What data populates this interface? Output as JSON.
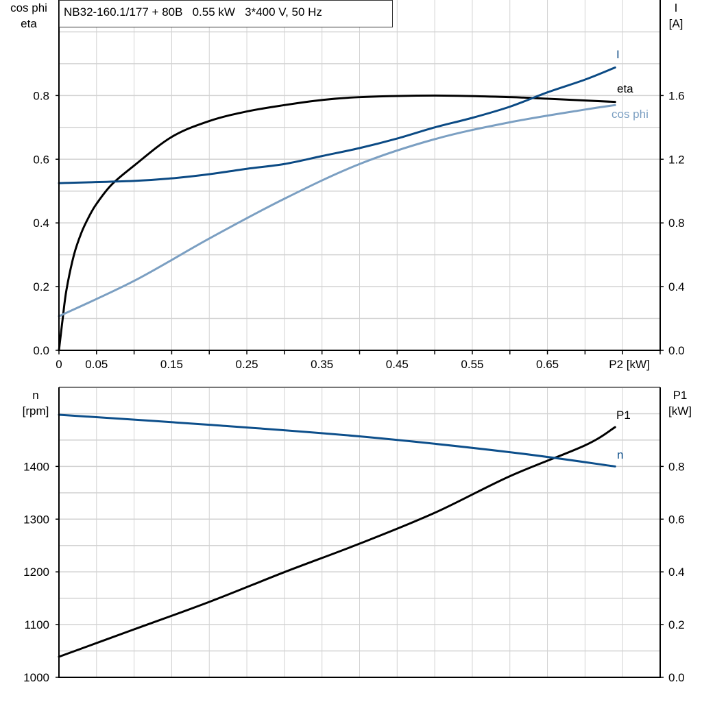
{
  "chart_data": [
    {
      "type": "line",
      "title": "NB32-160.1/177 + 80B   0.55 kW   3*400 V, 50 Hz",
      "xlabel": "P2 [kW]",
      "xlim": [
        0,
        0.8
      ],
      "x_tick_labels": [
        "0",
        "0.05",
        "0.15",
        "0.25",
        "0.35",
        "0.45",
        "0.55",
        "0.65"
      ],
      "x_tick_values": [
        0,
        0.05,
        0.15,
        0.25,
        0.35,
        0.45,
        0.55,
        0.65
      ],
      "ylabel_left": [
        "cos phi",
        "eta"
      ],
      "ylim_left": [
        0,
        1.1
      ],
      "y_ticks_left": [
        "0.0",
        "0.2",
        "0.4",
        "0.6",
        "0.8"
      ],
      "ylabel_right": [
        "I",
        "[A]"
      ],
      "ylim_right": [
        0,
        2.2
      ],
      "y_ticks_right": [
        "0.0",
        "0.4",
        "0.8",
        "1.2",
        "1.6"
      ],
      "grid": true,
      "series": [
        {
          "name": "eta",
          "axis": "left",
          "color": "#000000",
          "x": [
            0,
            0.005,
            0.01,
            0.02,
            0.03,
            0.04,
            0.05,
            0.07,
            0.1,
            0.15,
            0.2,
            0.25,
            0.3,
            0.35,
            0.4,
            0.5,
            0.6,
            0.65,
            0.74
          ],
          "y": [
            0,
            0.1,
            0.19,
            0.3,
            0.37,
            0.42,
            0.46,
            0.52,
            0.58,
            0.67,
            0.72,
            0.75,
            0.77,
            0.786,
            0.795,
            0.8,
            0.795,
            0.79,
            0.78
          ]
        },
        {
          "name": "I",
          "axis": "right",
          "color": "#0b4a84",
          "x": [
            0,
            0.1,
            0.15,
            0.2,
            0.25,
            0.3,
            0.35,
            0.4,
            0.45,
            0.5,
            0.55,
            0.6,
            0.65,
            0.7,
            0.74
          ],
          "y": [
            1.05,
            1.064,
            1.08,
            1.106,
            1.14,
            1.17,
            1.22,
            1.27,
            1.33,
            1.4,
            1.46,
            1.53,
            1.62,
            1.7,
            1.776
          ]
        },
        {
          "name": "cos phi",
          "axis": "left",
          "color": "#7b9fc2",
          "x": [
            0,
            0.1,
            0.2,
            0.3,
            0.4,
            0.5,
            0.6,
            0.7,
            0.74
          ],
          "y": [
            0.107,
            0.218,
            0.351,
            0.476,
            0.585,
            0.663,
            0.716,
            0.756,
            0.77
          ]
        }
      ]
    },
    {
      "type": "line",
      "xlim": [
        0,
        0.8
      ],
      "ylabel_left": [
        "n",
        "[rpm]"
      ],
      "ylim_left": [
        1000,
        1550
      ],
      "y_ticks_left": [
        "1000",
        "1100",
        "1200",
        "1300",
        "1400"
      ],
      "ylabel_right": [
        "P1",
        "[kW]"
      ],
      "ylim_right": [
        0,
        1.1
      ],
      "y_ticks_right": [
        "0.0",
        "0.2",
        "0.4",
        "0.6",
        "0.8"
      ],
      "grid": true,
      "series": [
        {
          "name": "P1",
          "axis": "right",
          "color": "#000000",
          "x": [
            0,
            0.1,
            0.2,
            0.3,
            0.4,
            0.5,
            0.6,
            0.7,
            0.74
          ],
          "y": [
            0.078,
            0.182,
            0.286,
            0.399,
            0.507,
            0.624,
            0.763,
            0.88,
            0.949
          ]
        },
        {
          "name": "n",
          "axis": "left",
          "color": "#0d4f8b",
          "x": [
            0,
            0.2,
            0.4,
            0.6,
            0.74
          ],
          "y": [
            1498,
            1479,
            1457,
            1427,
            1400
          ]
        }
      ]
    }
  ]
}
